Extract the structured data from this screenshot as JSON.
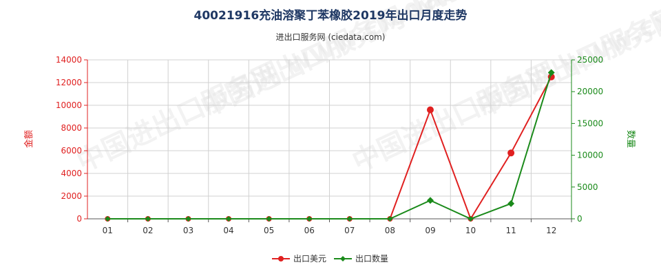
{
  "chart_data": {
    "type": "line",
    "title": "40021916充油溶聚丁苯橡胶2019年出口月度走势",
    "subtitle": "进出口服务网 (ciedata.com)",
    "categories": [
      "01",
      "02",
      "03",
      "04",
      "05",
      "06",
      "07",
      "08",
      "09",
      "10",
      "11",
      "12"
    ],
    "y_left": {
      "label": "金额",
      "ylim": [
        0,
        14000
      ],
      "ticks": [
        0,
        2000,
        4000,
        6000,
        8000,
        10000,
        12000,
        14000
      ],
      "color": "#e02020"
    },
    "y_right": {
      "label": "数量",
      "ylim": [
        0,
        25000
      ],
      "ticks": [
        0,
        5000,
        10000,
        15000,
        20000,
        25000
      ],
      "color": "#1a8a1a"
    },
    "grid": true,
    "legend_position": "bottom-center",
    "series": [
      {
        "name": "出口美元",
        "axis": "left",
        "color": "#e02020",
        "marker": "circle",
        "values": [
          0,
          0,
          0,
          0,
          0,
          0,
          0,
          0,
          9600,
          0,
          5800,
          12500
        ]
      },
      {
        "name": "出口数量",
        "axis": "right",
        "color": "#1a8a1a",
        "marker": "diamond",
        "values": [
          0,
          0,
          0,
          0,
          0,
          0,
          0,
          0,
          2900,
          0,
          2400,
          23000
        ]
      }
    ],
    "watermark": "中国进出口服务网 www.ciedata.com"
  }
}
